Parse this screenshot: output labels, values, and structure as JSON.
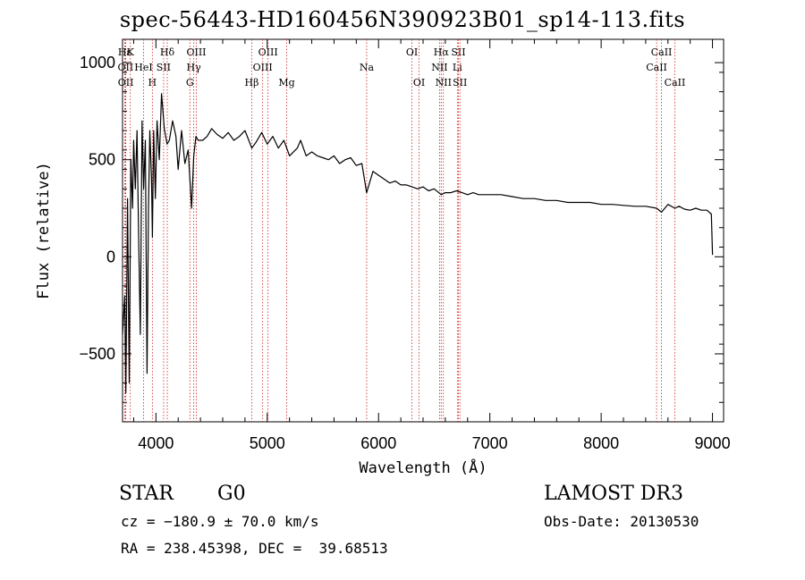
{
  "title": "spec-56443-HD160456N390923B01_sp14-113.fits",
  "chart_data": {
    "type": "line",
    "xlabel": "Wavelength (Å)",
    "ylabel": "Flux (relative)",
    "xlim": [
      3700,
      9100
    ],
    "ylim": [
      -850,
      1120
    ],
    "x_ticks": [
      4000,
      5000,
      6000,
      7000,
      8000,
      9000
    ],
    "y_ticks": [
      -500,
      0,
      500,
      1000
    ],
    "x": [
      3700,
      3720,
      3730,
      3745,
      3760,
      3775,
      3790,
      3800,
      3815,
      3830,
      3845,
      3860,
      3875,
      3890,
      3905,
      3920,
      3933,
      3945,
      3960,
      3968,
      3980,
      3995,
      4010,
      4030,
      4050,
      4075,
      4100,
      4120,
      4150,
      4180,
      4200,
      4230,
      4260,
      4290,
      4320,
      4340,
      4360,
      4380,
      4420,
      4460,
      4500,
      4550,
      4600,
      4650,
      4700,
      4750,
      4800,
      4861,
      4900,
      4950,
      5000,
      5050,
      5100,
      5150,
      5200,
      5270,
      5300,
      5350,
      5400,
      5450,
      5500,
      5550,
      5600,
      5650,
      5700,
      5750,
      5800,
      5850,
      5893,
      5950,
      6000,
      6050,
      6100,
      6150,
      6200,
      6250,
      6300,
      6350,
      6400,
      6450,
      6500,
      6563,
      6600,
      6650,
      6700,
      6750,
      6800,
      6850,
      6900,
      6950,
      7000,
      7100,
      7200,
      7300,
      7400,
      7500,
      7600,
      7700,
      7800,
      7900,
      8000,
      8100,
      8200,
      8300,
      8400,
      8498,
      8542,
      8600,
      8662,
      8700,
      8750,
      8800,
      8850,
      8900,
      8950,
      8990,
      9000
    ],
    "y": [
      -400,
      -200,
      -700,
      300,
      -650,
      500,
      250,
      600,
      350,
      650,
      100,
      -400,
      700,
      350,
      600,
      -600,
      250,
      650,
      400,
      100,
      650,
      300,
      700,
      500,
      840,
      660,
      580,
      600,
      700,
      620,
      450,
      650,
      480,
      550,
      250,
      520,
      620,
      600,
      600,
      620,
      660,
      630,
      610,
      640,
      600,
      620,
      650,
      560,
      590,
      640,
      580,
      620,
      560,
      600,
      520,
      560,
      600,
      520,
      540,
      520,
      510,
      500,
      520,
      480,
      500,
      510,
      470,
      480,
      330,
      440,
      420,
      400,
      380,
      390,
      370,
      370,
      360,
      350,
      360,
      340,
      350,
      320,
      330,
      330,
      340,
      330,
      320,
      330,
      320,
      320,
      320,
      320,
      310,
      300,
      300,
      290,
      290,
      280,
      280,
      280,
      270,
      270,
      265,
      260,
      260,
      250,
      230,
      270,
      250,
      260,
      245,
      240,
      250,
      240,
      240,
      220,
      10
    ],
    "lines": [
      {
        "label": "Hε",
        "x": 3720,
        "row": 0
      },
      {
        "label": "K",
        "x": 3770,
        "row": 0
      },
      {
        "label": "Hδ",
        "x": 4102,
        "row": 0
      },
      {
        "label": "OIII",
        "x": 4363,
        "row": 0
      },
      {
        "label": "OIII",
        "x": 5007,
        "row": 0
      },
      {
        "label": "OI",
        "x": 6300,
        "row": 0
      },
      {
        "label": "Hα",
        "x": 6563,
        "row": 0
      },
      {
        "label": "SII",
        "x": 6717,
        "row": 0
      },
      {
        "label": "CaII",
        "x": 8542,
        "row": 0
      },
      {
        "label": "OII",
        "x": 3727,
        "row": 1
      },
      {
        "label": "HeI",
        "x": 3889,
        "row": 1
      },
      {
        "label": "SII",
        "x": 4069,
        "row": 1
      },
      {
        "label": "Hγ",
        "x": 4340,
        "row": 1
      },
      {
        "label": "OIII",
        "x": 4959,
        "row": 1
      },
      {
        "label": "Na",
        "x": 5893,
        "row": 1
      },
      {
        "label": "NII",
        "x": 6548,
        "row": 1
      },
      {
        "label": "Li",
        "x": 6708,
        "row": 1
      },
      {
        "label": "CaII",
        "x": 8498,
        "row": 1
      },
      {
        "label": "OII",
        "x": 3729,
        "row": 2
      },
      {
        "label": "H",
        "x": 3968,
        "row": 2
      },
      {
        "label": "G",
        "x": 4305,
        "row": 2
      },
      {
        "label": "Hβ",
        "x": 4861,
        "row": 2
      },
      {
        "label": "Mg",
        "x": 5175,
        "row": 2
      },
      {
        "label": "OI",
        "x": 6364,
        "row": 2
      },
      {
        "label": "NII",
        "x": 6583,
        "row": 2
      },
      {
        "label": "SII",
        "x": 6731,
        "row": 2
      },
      {
        "label": "CaII",
        "x": 8662,
        "row": 2
      }
    ],
    "colors": {
      "spectrum": "#000000",
      "lines": "#cc2222"
    }
  },
  "info": {
    "class": "STAR",
    "subclass": "G0",
    "survey": "LAMOST DR3",
    "cz": "cz = −180.9 ± 70.0 km/s",
    "obs_date": "Obs-Date: 20130530",
    "coords": "RA = 238.45398, DEC =  39.68513"
  }
}
